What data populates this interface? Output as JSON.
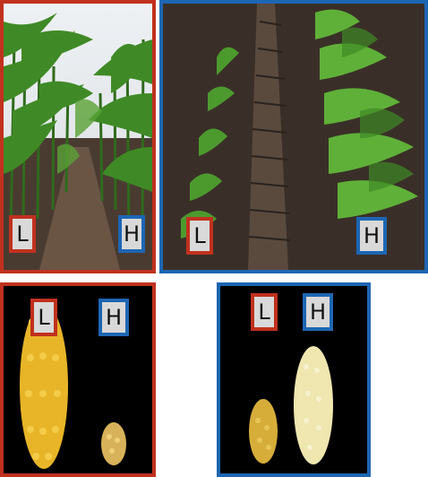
{
  "panels": {
    "top_left": {
      "label": "L",
      "frame_color": "#c0311e"
    },
    "top_right": {
      "labels": [
        "L",
        "H"
      ],
      "frame_color": "#1d66b3"
    },
    "bottom_left": {
      "labels": [
        "L",
        "H"
      ],
      "frame_color": "#c0311e"
    },
    "bottom_right": {
      "labels": [
        "L",
        "H"
      ],
      "frame_color": "#1d66b3"
    }
  },
  "top_left_second_label": "H",
  "colors": {
    "red_frame": "#c0311e",
    "blue_frame": "#1d66b3",
    "soil": "#3a2e26",
    "corn_kernel": "#e8b528",
    "white_kernel": "#efe6b0"
  }
}
